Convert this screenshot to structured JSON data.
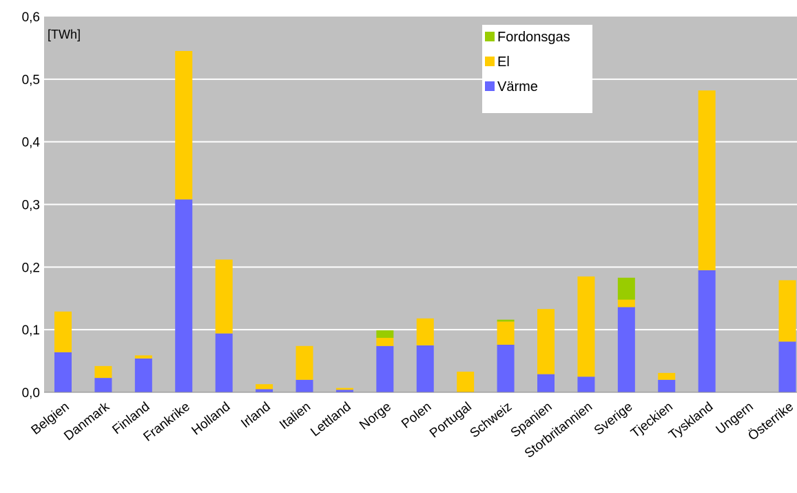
{
  "chart_data": {
    "type": "bar",
    "stacked": true,
    "unit_label": "[TWh]",
    "categories": [
      "Belgien",
      "Danmark",
      "Finland",
      "Frankrike",
      "Holland",
      "Irland",
      "Italien",
      "Lettland",
      "Norge",
      "Polen",
      "Portugal",
      "Schweiz",
      "Spanien",
      "Storbritannien",
      "Sverige",
      "Tjeckien",
      "Tyskland",
      "Ungern",
      "Österrike"
    ],
    "series": [
      {
        "name": "Värme",
        "color": "#6666ff",
        "values": [
          0.064,
          0.023,
          0.054,
          0.308,
          0.094,
          0.005,
          0.02,
          0.004,
          0.074,
          0.075,
          0.0,
          0.076,
          0.029,
          0.025,
          0.136,
          0.02,
          0.195,
          0.0,
          0.081
        ]
      },
      {
        "name": "El",
        "color": "#ffcc00",
        "values": [
          0.065,
          0.019,
          0.005,
          0.237,
          0.118,
          0.008,
          0.054,
          0.003,
          0.013,
          0.043,
          0.033,
          0.037,
          0.104,
          0.16,
          0.012,
          0.011,
          0.287,
          0.0,
          0.098
        ]
      },
      {
        "name": "Fordonsgas",
        "color": "#99cc00",
        "values": [
          0.0,
          0.0,
          0.0,
          0.0,
          0.0,
          0.0,
          0.0,
          0.0,
          0.012,
          0.0,
          0.0,
          0.003,
          0.0,
          0.0,
          0.035,
          0.0,
          0.0,
          0.0,
          0.0
        ]
      }
    ],
    "ylim": [
      0,
      0.6
    ],
    "yticks": [
      "0,0",
      "0,1",
      "0,2",
      "0,3",
      "0,4",
      "0,5",
      "0,6"
    ],
    "legend_order": [
      "Fordonsgas",
      "El",
      "Värme"
    ],
    "legend_position": "top-center",
    "grid": true,
    "plot_background": "#c0c0c0",
    "grid_color": "#ffffff"
  }
}
